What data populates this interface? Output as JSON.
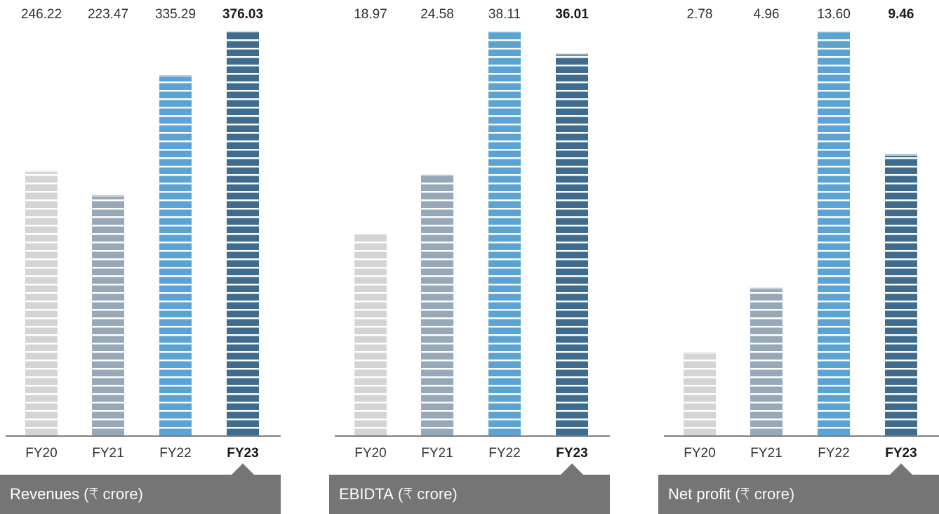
{
  "chart_data": [
    {
      "type": "bar",
      "categories": [
        "FY20",
        "FY21",
        "FY22",
        "FY23"
      ],
      "values": [
        246.22,
        223.47,
        335.29,
        376.03
      ],
      "value_labels": [
        "246.22",
        "223.47",
        "335.29",
        "376.03"
      ],
      "title": "Revenues",
      "unit": "(₹ crore)",
      "highlight": "FY23",
      "ylim": [
        0,
        376.03
      ]
    },
    {
      "type": "bar",
      "categories": [
        "FY20",
        "FY21",
        "FY22",
        "FY23"
      ],
      "values": [
        18.97,
        24.58,
        38.11,
        36.01
      ],
      "value_labels": [
        "18.97",
        "24.58",
        "38.11",
        "36.01"
      ],
      "title": "EBIDTA",
      "unit": "(₹ crore)",
      "highlight": "FY23",
      "ylim": [
        0,
        38.11
      ]
    },
    {
      "type": "bar",
      "categories": [
        "FY20",
        "FY21",
        "FY22",
        "FY23"
      ],
      "values": [
        2.78,
        4.96,
        13.6,
        9.46
      ],
      "value_labels": [
        "2.78",
        "4.96",
        "13.60",
        "9.46"
      ],
      "title": "Net profit",
      "unit": "(₹ crore)",
      "highlight": "FY23",
      "ylim": [
        0,
        13.6
      ]
    }
  ],
  "colors": {
    "FY20": "#d4d4d4",
    "FY21": "#97a8b9",
    "FY22": "#5ba3d2",
    "FY23": "#3f6c8e",
    "label_box": "#757575",
    "axis": "#333333"
  }
}
